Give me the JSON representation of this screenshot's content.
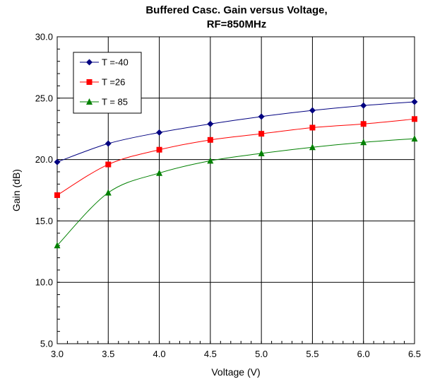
{
  "chart_data": {
    "type": "line",
    "title_line1": "Buffered Casc. Gain versus Voltage,",
    "title_line2": "RF=850MHz",
    "xlabel": "Voltage (V)",
    "ylabel": "Gain (dB)",
    "xlim": [
      3.0,
      6.5
    ],
    "ylim": [
      5.0,
      30.0
    ],
    "xticks": [
      "3.0",
      "3.5",
      "4.0",
      "4.5",
      "5.0",
      "5.5",
      "6.0",
      "6.5"
    ],
    "yticks": [
      "5.0",
      "10.0",
      "15.0",
      "20.0",
      "25.0",
      "30.0"
    ],
    "grid": true,
    "legend_position": "top-left",
    "x": [
      3.0,
      3.5,
      4.0,
      4.5,
      5.0,
      5.5,
      6.0,
      6.5
    ],
    "series": [
      {
        "name": "T =-40",
        "color": "#000080",
        "marker": "diamond",
        "values": [
          19.8,
          21.3,
          22.2,
          22.9,
          23.5,
          24.0,
          24.4,
          24.7
        ]
      },
      {
        "name": "T =26",
        "color": "#ff0000",
        "marker": "square",
        "values": [
          17.1,
          19.6,
          20.8,
          21.6,
          22.1,
          22.6,
          22.9,
          23.3
        ]
      },
      {
        "name": "T = 85",
        "color": "#008000",
        "marker": "triangle",
        "values": [
          13.0,
          17.3,
          18.9,
          19.9,
          20.5,
          21.0,
          21.4,
          21.7
        ]
      }
    ]
  }
}
